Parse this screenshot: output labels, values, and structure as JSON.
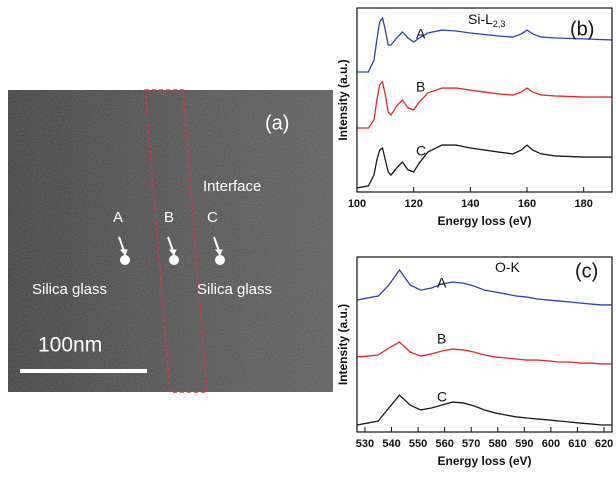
{
  "image": {
    "panel": "(a)",
    "labels": [
      "Interface",
      "A",
      "B",
      "C",
      "Silica glass",
      "Silica glass"
    ],
    "scale_bar": "100nm"
  },
  "chart_data": [
    {
      "type": "line",
      "panel": "(b)",
      "annotation": {
        "text": "Si-L",
        "subscript": "2,3"
      },
      "xlabel": "Energy loss (eV)",
      "ylabel": "Intensity (a.u.)",
      "xlim": [
        100,
        190
      ],
      "xticks": [
        100,
        120,
        140,
        160,
        180
      ],
      "ylim": [
        0,
        10
      ],
      "x": [
        100,
        104,
        106,
        107,
        108,
        109,
        110,
        111,
        112,
        114,
        116,
        118,
        120,
        122,
        125,
        130,
        135,
        140,
        150,
        155,
        158,
        160,
        162,
        165,
        170,
        180,
        190
      ],
      "series": [
        {
          "name": "A",
          "color": "#2b3fbf",
          "values": [
            6.52,
            6.52,
            7.17,
            8.26,
            9.24,
            9.46,
            8.8,
            7.99,
            7.99,
            8.37,
            8.7,
            8.37,
            8.15,
            8.37,
            8.64,
            8.8,
            8.75,
            8.64,
            8.48,
            8.42,
            8.59,
            8.8,
            8.59,
            8.42,
            8.37,
            8.32,
            8.26
          ]
        },
        {
          "name": "B",
          "color": "#e8262a",
          "values": [
            3.48,
            3.48,
            3.91,
            5.0,
            5.82,
            5.98,
            5.27,
            4.35,
            4.18,
            4.67,
            5.0,
            4.57,
            4.46,
            4.89,
            5.38,
            5.65,
            5.65,
            5.54,
            5.33,
            5.27,
            5.43,
            5.65,
            5.43,
            5.27,
            5.22,
            5.16,
            5.16
          ]
        },
        {
          "name": "C",
          "color": "#1a1a1a",
          "values": [
            0.22,
            0.33,
            0.92,
            1.74,
            2.28,
            2.39,
            1.74,
            1.09,
            0.92,
            1.3,
            1.63,
            1.2,
            1.09,
            1.58,
            2.17,
            2.55,
            2.55,
            2.39,
            2.17,
            2.07,
            2.28,
            2.55,
            2.28,
            2.07,
            1.96,
            1.9,
            1.9
          ]
        }
      ]
    },
    {
      "type": "line",
      "panel": "(c)",
      "annotation": {
        "text": "O-K"
      },
      "xlabel": "Energy loss (eV)",
      "ylabel": "Intensity (a.u.)",
      "xlim": [
        527,
        623
      ],
      "xticks": [
        530,
        540,
        550,
        560,
        570,
        580,
        590,
        600,
        610,
        620
      ],
      "ylim": [
        0,
        10
      ],
      "x": [
        527,
        531,
        535,
        539,
        543,
        547,
        551,
        555,
        559,
        563,
        567,
        571,
        575,
        579,
        583,
        587,
        591,
        595,
        599,
        603,
        607,
        611,
        615,
        619,
        623
      ],
      "series": [
        {
          "name": "A",
          "color": "#2b3fbf",
          "values": [
            7.54,
            7.66,
            7.77,
            8.4,
            9.26,
            8.4,
            8.11,
            8.23,
            8.46,
            8.57,
            8.51,
            8.34,
            8.11,
            8.0,
            7.89,
            7.77,
            7.71,
            7.6,
            7.54,
            7.49,
            7.43,
            7.37,
            7.31,
            7.26,
            7.26
          ]
        },
        {
          "name": "B",
          "color": "#e8262a",
          "values": [
            4.29,
            4.34,
            4.4,
            4.8,
            5.14,
            4.57,
            4.34,
            4.46,
            4.63,
            4.74,
            4.69,
            4.57,
            4.4,
            4.29,
            4.23,
            4.17,
            4.11,
            4.11,
            4.06,
            4.0,
            4.0,
            3.94,
            3.94,
            3.89,
            3.89
          ]
        },
        {
          "name": "C",
          "color": "#1a1a1a",
          "values": [
            0.4,
            0.51,
            0.63,
            1.37,
            2.11,
            1.54,
            1.26,
            1.37,
            1.54,
            1.71,
            1.66,
            1.49,
            1.26,
            1.09,
            0.97,
            0.86,
            0.8,
            0.74,
            0.69,
            0.63,
            0.57,
            0.51,
            0.46,
            0.4,
            0.4
          ]
        }
      ]
    }
  ]
}
